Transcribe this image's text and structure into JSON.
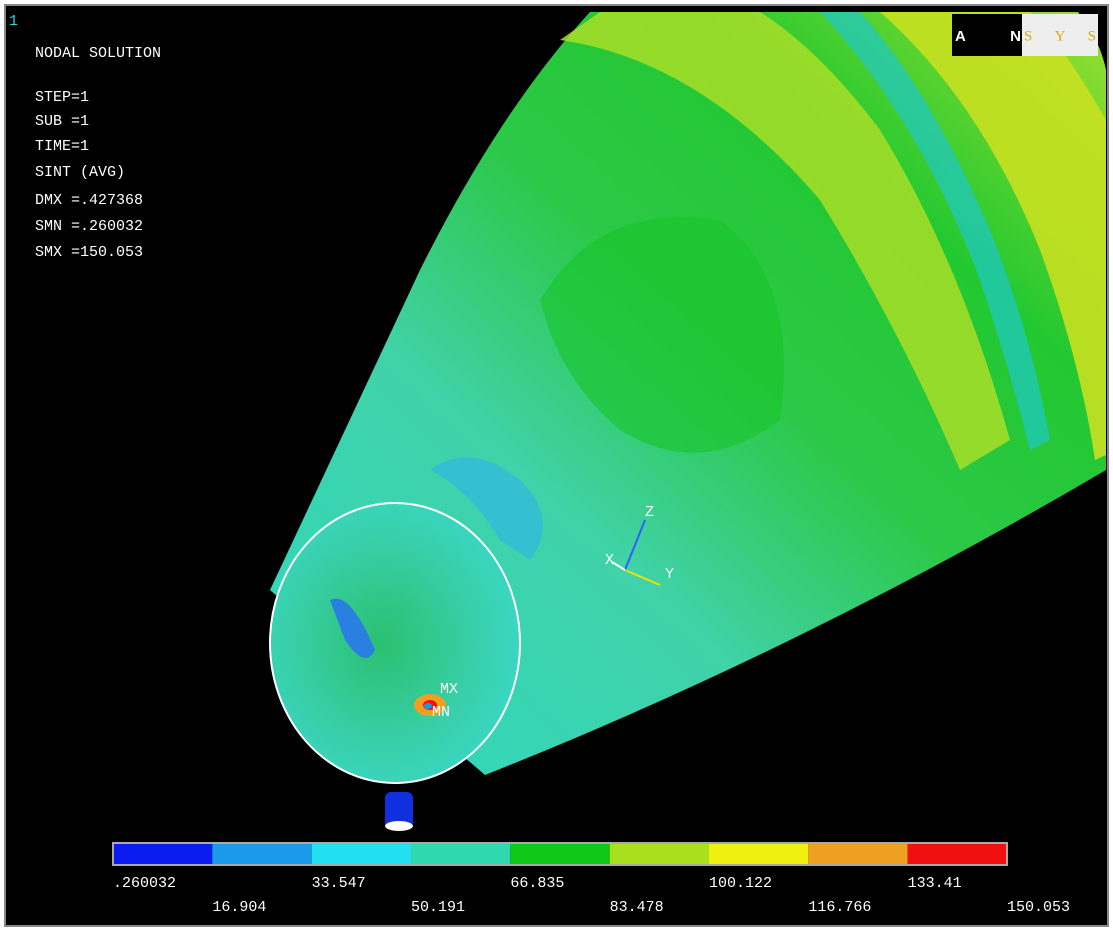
{
  "window": {
    "number": "1",
    "logo": {
      "left": "AN",
      "right": "SYS"
    }
  },
  "info": {
    "title": "NODAL SOLUTION",
    "lines": [
      "STEP=1",
      "SUB =1",
      "TIME=1",
      "SINT     (AVG)",
      "DMX =.427368",
      "SMN =.260032",
      "SMX =150.053"
    ]
  },
  "model": {
    "max_label": "MX",
    "min_label": "MN",
    "axes": {
      "x": "X",
      "y": "Y",
      "z": "Z"
    }
  },
  "legend": {
    "colors": [
      "#0a1cf0",
      "#1a9ae8",
      "#22e0f0",
      "#30d8b0",
      "#10c818",
      "#a8e020",
      "#f0f010",
      "#f0a020",
      "#f01010"
    ],
    "labels": [
      ".260032",
      "16.904",
      "33.547",
      "50.191",
      "66.835",
      "83.478",
      "100.122",
      "116.766",
      "133.41",
      "150.053"
    ]
  }
}
